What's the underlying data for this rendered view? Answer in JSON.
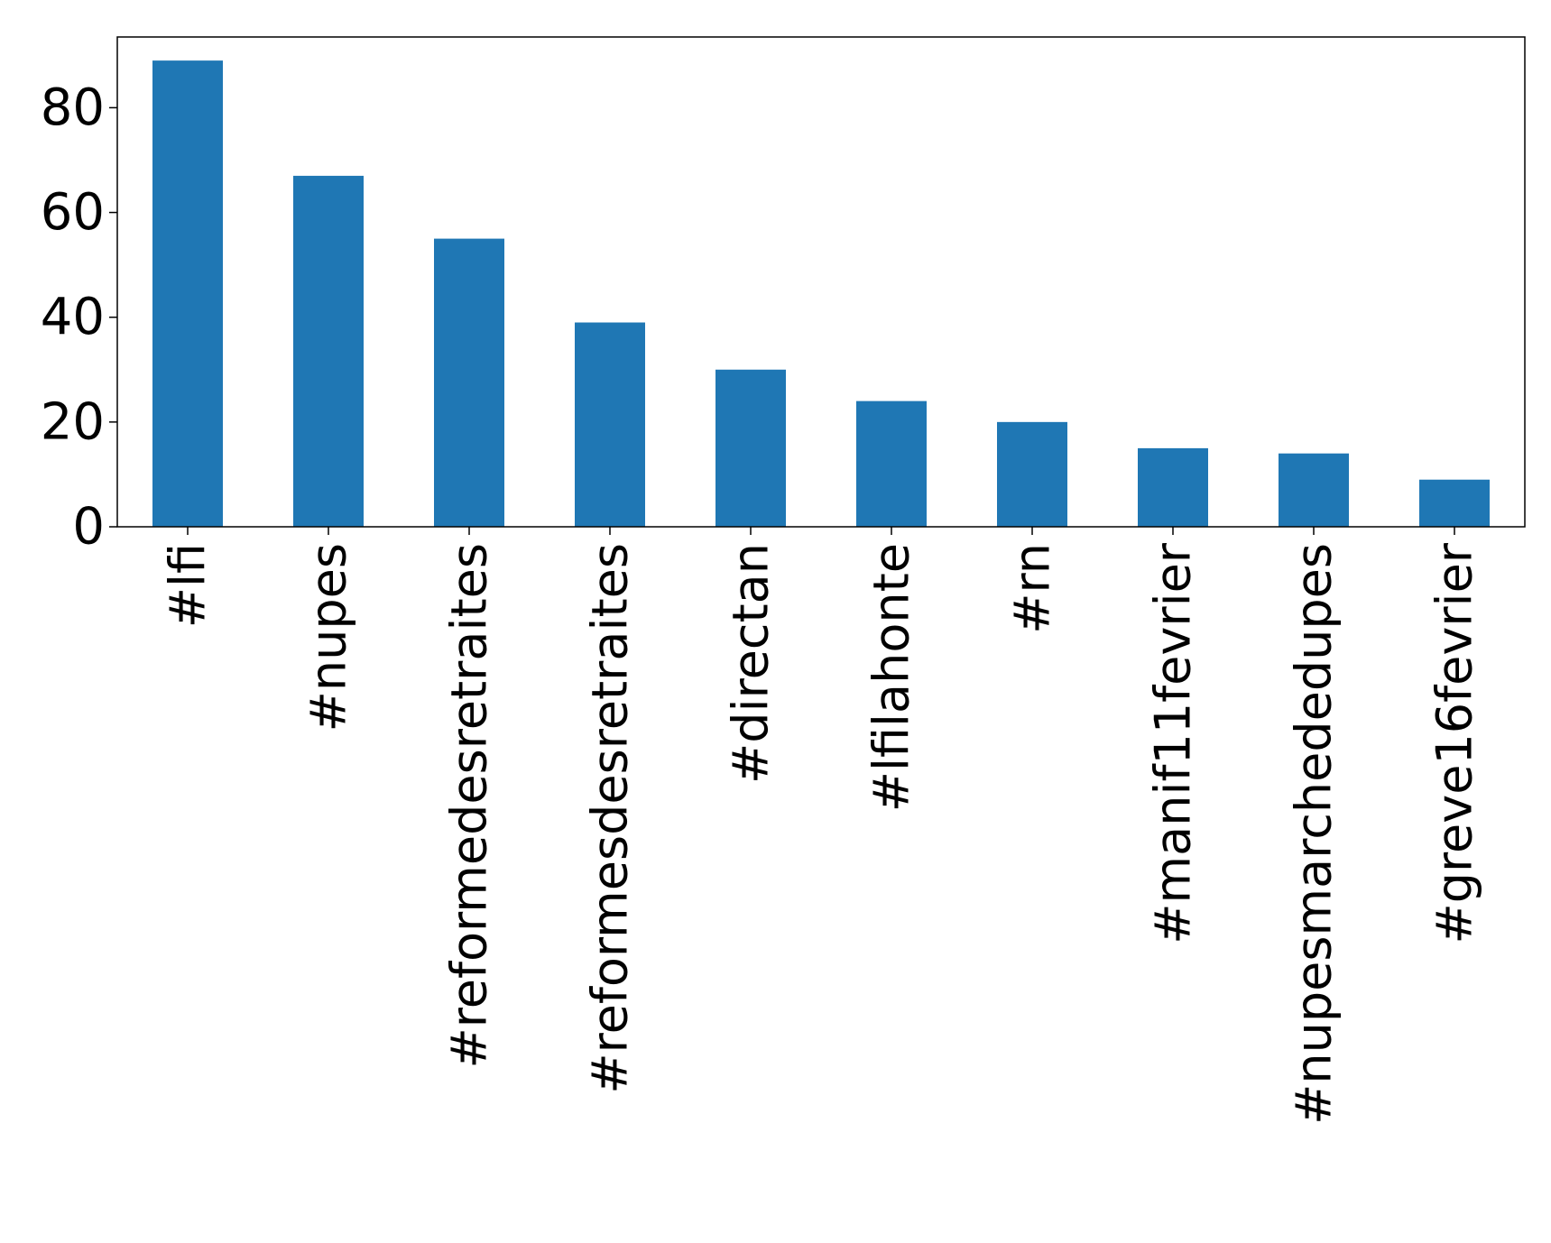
{
  "chart_data": {
    "type": "bar",
    "title": "",
    "xlabel": "",
    "ylabel": "",
    "categories": [
      "#lfi",
      "#nupes",
      "#reformedesretraites",
      "#reformesdesretraites",
      "#directan",
      "#lfilahonte",
      "#rn",
      "#manif11fevrier",
      "#nupesmarchededupes",
      "#greve16fevrier"
    ],
    "values": [
      89,
      67,
      55,
      39,
      30,
      24,
      20,
      15,
      14,
      9
    ],
    "ylim": [
      0,
      93.5
    ],
    "yticks": [
      0,
      20,
      40,
      60,
      80
    ],
    "bar_color": "#1f77b4",
    "grid": false,
    "legend": "none"
  }
}
